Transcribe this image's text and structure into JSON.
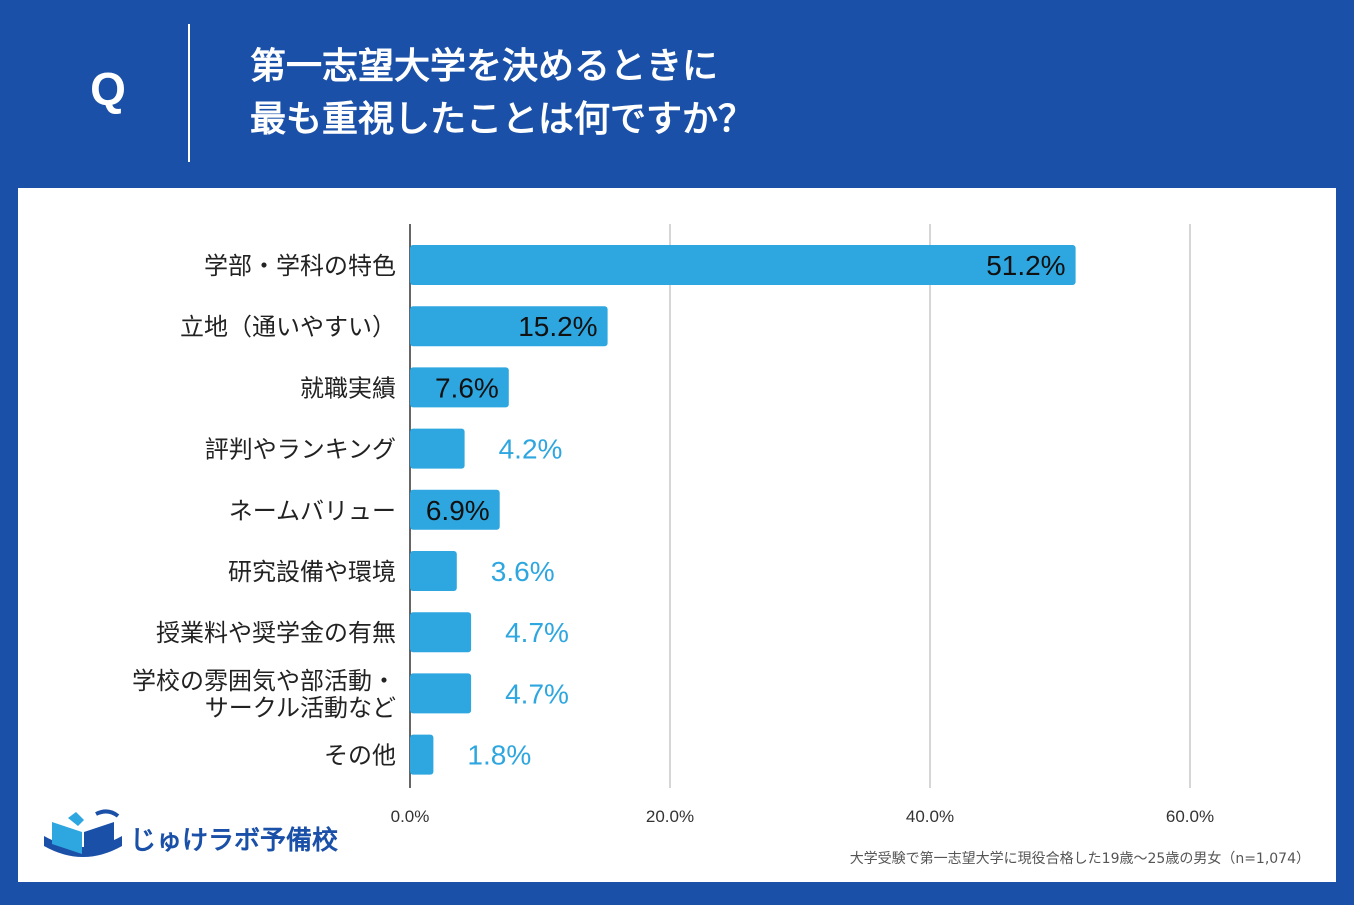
{
  "header": {
    "q_label": "Q",
    "question_line1": "第一志望大学を決めるときに",
    "question_line2": "最も重視したことは何ですか？"
  },
  "colors": {
    "header_bg": "#1a50a8",
    "bar": "#2ea6df",
    "label_outside": "#2ea6df",
    "label_inside": "#111111",
    "grid": "#c8c8c8"
  },
  "chart_data": {
    "type": "bar",
    "orientation": "horizontal",
    "categories": [
      [
        "学部・学科の特色"
      ],
      [
        "立地（通いやすい）"
      ],
      [
        "就職実績"
      ],
      [
        "評判やランキング"
      ],
      [
        "ネームバリュー"
      ],
      [
        "研究設備や環境"
      ],
      [
        "授業料や奨学金の有無"
      ],
      [
        "学校の雰囲気や部活動・",
        "サークル活動など"
      ],
      [
        "その他"
      ]
    ],
    "values": [
      51.2,
      15.2,
      7.6,
      4.2,
      6.9,
      3.6,
      4.7,
      4.7,
      1.8
    ],
    "data_labels": [
      "51.2%",
      "15.2%",
      "7.6%",
      "4.2%",
      "6.9%",
      "3.6%",
      "4.7%",
      "4.7%",
      "1.8%"
    ],
    "label_inside": [
      true,
      true,
      true,
      false,
      true,
      false,
      false,
      false,
      false
    ],
    "xlim": [
      0,
      60
    ],
    "xticks": [
      0,
      20,
      40,
      60
    ],
    "xtick_labels": [
      "0.0%",
      "20.0%",
      "40.0%",
      "60.0%"
    ],
    "grid": true
  },
  "brand": {
    "name": "じゅけラボ予備校"
  },
  "footnote": "大学受験で第一志望大学に現役合格した19歳〜25歳の男女（n=1,074）"
}
